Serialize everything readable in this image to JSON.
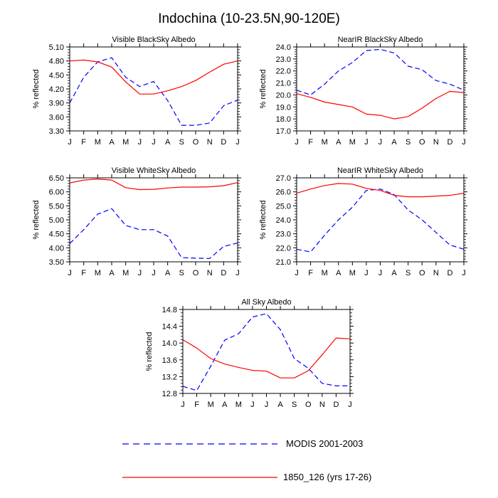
{
  "figure": {
    "title": "Indochina (10-23.5N,90-120E)",
    "ylabel": "% reflected",
    "months": [
      "J",
      "F",
      "M",
      "A",
      "M",
      "J",
      "J",
      "A",
      "S",
      "O",
      "N",
      "D",
      "J"
    ],
    "legend": [
      {
        "label": "MODIS 2001-2003",
        "color": "#0000ff",
        "dash": true
      },
      {
        "label": "1850_126 (yrs 17-26)",
        "color": "#ff0000",
        "dash": false
      }
    ]
  },
  "chart_data": [
    {
      "type": "line",
      "title": "Visible BlackSky Albedo",
      "ylabel": "% reflected",
      "x": [
        "J",
        "F",
        "M",
        "A",
        "M",
        "J",
        "J",
        "A",
        "S",
        "O",
        "N",
        "D",
        "J"
      ],
      "ylim": [
        3.3,
        5.1
      ],
      "yticks": [
        "3.30",
        "3.60",
        "3.90",
        "4.20",
        "4.50",
        "4.80",
        "5.10"
      ],
      "series": [
        {
          "name": "MODIS 2001-2003",
          "color": "#0000ff",
          "dash": true,
          "values": [
            3.9,
            4.45,
            4.78,
            4.87,
            4.45,
            4.25,
            4.36,
            3.95,
            3.42,
            3.42,
            3.47,
            3.84,
            3.96
          ]
        },
        {
          "name": "1850_126 (yrs 17-26)",
          "color": "#ff0000",
          "dash": false,
          "values": [
            4.8,
            4.82,
            4.78,
            4.67,
            4.35,
            4.09,
            4.09,
            4.16,
            4.25,
            4.38,
            4.56,
            4.73,
            4.8
          ]
        }
      ]
    },
    {
      "type": "line",
      "title": "NearIR BlackSky Albedo",
      "ylabel": "% reflected",
      "x": [
        "J",
        "F",
        "M",
        "A",
        "M",
        "J",
        "J",
        "A",
        "S",
        "O",
        "N",
        "D",
        "J"
      ],
      "ylim": [
        17.0,
        24.0
      ],
      "yticks": [
        "17.0",
        "18.0",
        "19.0",
        "20.0",
        "21.0",
        "22.0",
        "23.0",
        "24.0"
      ],
      "series": [
        {
          "name": "MODIS 2001-2003",
          "color": "#0000ff",
          "dash": true,
          "values": [
            20.4,
            20.0,
            20.9,
            22.0,
            22.7,
            23.7,
            23.8,
            23.5,
            22.4,
            22.1,
            21.2,
            20.9,
            20.4
          ]
        },
        {
          "name": "1850_126 (yrs 17-26)",
          "color": "#ff0000",
          "dash": false,
          "values": [
            20.1,
            19.8,
            19.4,
            19.2,
            19.0,
            18.4,
            18.3,
            18.0,
            18.2,
            18.9,
            19.7,
            20.3,
            20.2
          ]
        }
      ]
    },
    {
      "type": "line",
      "title": "Visible WhiteSky Albedo",
      "ylabel": "% reflected",
      "x": [
        "J",
        "F",
        "M",
        "A",
        "M",
        "J",
        "J",
        "A",
        "S",
        "O",
        "N",
        "D",
        "J"
      ],
      "ylim": [
        3.5,
        6.5
      ],
      "yticks": [
        "3.50",
        "4.00",
        "4.50",
        "5.00",
        "5.50",
        "6.00",
        "6.50"
      ],
      "series": [
        {
          "name": "MODIS 2001-2003",
          "color": "#0000ff",
          "dash": true,
          "values": [
            4.15,
            4.65,
            5.2,
            5.4,
            4.8,
            4.65,
            4.65,
            4.42,
            3.65,
            3.63,
            3.62,
            4.05,
            4.17
          ]
        },
        {
          "name": "1850_126 (yrs 17-26)",
          "color": "#ff0000",
          "dash": false,
          "values": [
            6.32,
            6.42,
            6.46,
            6.42,
            6.15,
            6.08,
            6.09,
            6.14,
            6.17,
            6.17,
            6.18,
            6.22,
            6.33
          ]
        }
      ]
    },
    {
      "type": "line",
      "title": "NearIR WhiteSky Albedo",
      "ylabel": "% reflected",
      "x": [
        "J",
        "F",
        "M",
        "A",
        "M",
        "J",
        "J",
        "A",
        "S",
        "O",
        "N",
        "D",
        "J"
      ],
      "ylim": [
        21.0,
        27.0
      ],
      "yticks": [
        "21.0",
        "22.0",
        "23.0",
        "24.0",
        "25.0",
        "26.0",
        "27.0"
      ],
      "series": [
        {
          "name": "MODIS 2001-2003",
          "color": "#0000ff",
          "dash": true,
          "values": [
            21.9,
            21.7,
            22.9,
            24.0,
            24.9,
            26.1,
            26.2,
            25.8,
            24.7,
            24.0,
            23.1,
            22.2,
            21.9
          ]
        },
        {
          "name": "1850_126 (yrs 17-26)",
          "color": "#ff0000",
          "dash": false,
          "values": [
            25.9,
            26.2,
            26.45,
            26.6,
            26.55,
            26.25,
            26.1,
            25.75,
            25.65,
            25.65,
            25.7,
            25.75,
            25.9
          ]
        }
      ]
    },
    {
      "type": "line",
      "title": "All Sky Albedo",
      "ylabel": "% reflected",
      "x": [
        "J",
        "F",
        "M",
        "A",
        "M",
        "J",
        "J",
        "A",
        "S",
        "O",
        "N",
        "D",
        "J"
      ],
      "ylim": [
        12.8,
        14.8
      ],
      "yticks": [
        "12.8",
        "13.2",
        "13.6",
        "14.0",
        "14.4",
        "14.8"
      ],
      "series": [
        {
          "name": "MODIS 2001-2003",
          "color": "#0000ff",
          "dash": true,
          "values": [
            12.97,
            12.87,
            13.45,
            14.07,
            14.22,
            14.62,
            14.7,
            14.32,
            13.63,
            13.4,
            13.04,
            12.98,
            12.98
          ]
        },
        {
          "name": "1850_126 (yrs 17-26)",
          "color": "#ff0000",
          "dash": false,
          "values": [
            14.08,
            13.88,
            13.63,
            13.5,
            13.42,
            13.35,
            13.33,
            13.17,
            13.17,
            13.34,
            13.72,
            14.12,
            14.1
          ]
        }
      ]
    }
  ]
}
